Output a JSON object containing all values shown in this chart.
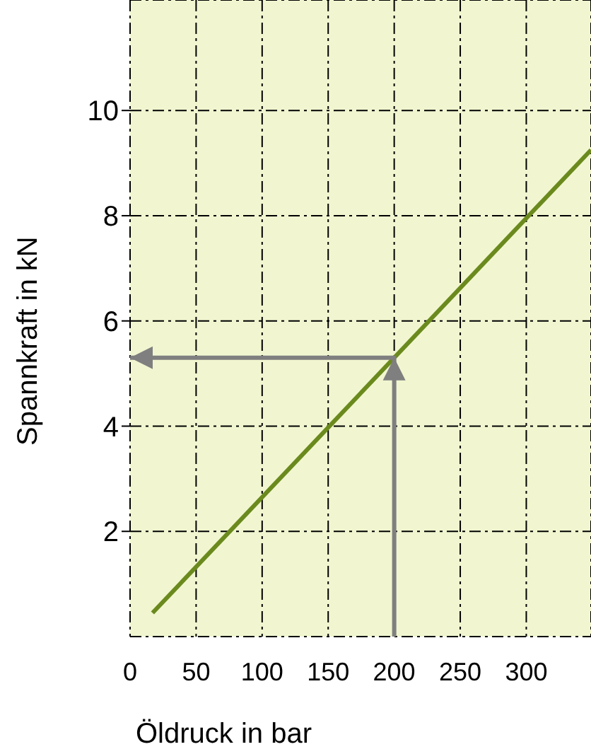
{
  "chart_data": {
    "type": "line",
    "xlabel": "Öldruck in bar",
    "ylabel": "Spannkraft in kN",
    "series": [
      {
        "color": "#6b8a1e",
        "x": [
          17,
          349
        ],
        "values": [
          0.45,
          9.25
        ]
      },
      {
        "color": "#7f7f7f",
        "x": [
          200,
          200,
          0
        ],
        "values": [
          0,
          5.3,
          5.3
        ]
      }
    ],
    "xlim": [
      0,
      349
    ],
    "xticks": [
      0,
      50,
      100,
      150,
      200,
      250,
      300
    ],
    "ylim": [
      0,
      12.1
    ],
    "yticks": [
      2,
      4,
      6,
      8,
      10
    ],
    "grid": true
  }
}
